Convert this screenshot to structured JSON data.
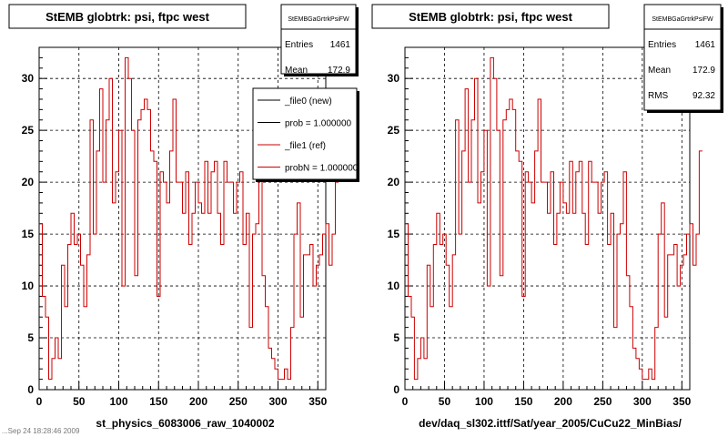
{
  "footer_text": "...Sep 24 18:28:46 2009",
  "legend": {
    "entries": [
      {
        "label": "_file0 (new)",
        "color": "#000000"
      },
      {
        "label": "prob = 1.000000",
        "color": "#000000"
      },
      {
        "label": "_file1 (ref)",
        "color": "#cc0000"
      },
      {
        "label": "probN = 1.000000",
        "color": "#cc0000"
      }
    ]
  },
  "chart_data": [
    {
      "type": "line",
      "title": "StEMB globtrk: psi, ftpc west",
      "xlabel": "st_physics_6083006_raw_1040002",
      "ylabel": "",
      "xlim": [
        0,
        360
      ],
      "ylim": [
        0,
        33
      ],
      "xticks": [
        0,
        50,
        100,
        150,
        200,
        250,
        300,
        350
      ],
      "yticks": [
        0,
        5,
        10,
        15,
        20,
        25,
        30
      ],
      "grid": true,
      "stats": {
        "name": "StEMBGaGrtrkPsiFW",
        "entries_label": "Entries",
        "entries": "1461",
        "mean_label": "Mean",
        "mean": "172.9"
      },
      "series": [
        {
          "name": "_file1 (ref)",
          "color": "#cc0000",
          "bin_width": 4,
          "values": [
            16,
            9,
            7,
            1,
            3,
            5,
            3,
            12,
            8,
            14,
            17,
            14,
            15,
            12,
            8,
            13,
            26,
            15,
            23,
            29,
            20,
            26,
            30,
            18,
            21,
            25,
            10,
            32,
            30,
            25,
            11,
            26,
            27,
            28,
            27,
            23,
            22,
            9,
            21,
            20,
            18,
            23,
            28,
            20,
            20,
            17,
            21,
            14,
            17,
            20,
            18,
            17,
            22,
            17,
            21,
            22,
            17,
            14,
            22,
            20,
            20,
            17,
            20,
            21,
            14,
            17,
            6,
            15,
            16,
            21,
            11,
            8,
            4,
            3,
            2,
            1,
            1,
            2,
            1,
            6,
            15,
            18,
            7,
            13,
            13,
            14,
            10,
            12,
            13,
            15,
            16,
            12,
            15,
            20
          ]
        }
      ]
    },
    {
      "type": "line",
      "title": "StEMB globtrk: psi, ftpc west",
      "xlabel": "dev/daq_sl302.ittf/Sat/year_2005/CuCu22_MinBias/",
      "ylabel": "",
      "xlim": [
        0,
        360
      ],
      "ylim": [
        0,
        33
      ],
      "xticks": [
        0,
        50,
        100,
        150,
        200,
        250,
        300,
        350
      ],
      "yticks": [
        0,
        5,
        10,
        15,
        20,
        25,
        30
      ],
      "grid": true,
      "stats": {
        "name": "StEMBGaGrtrkPsiFW",
        "entries_label": "Entries",
        "entries": "1461",
        "mean_label": "Mean",
        "mean": "172.9",
        "rms_label": "RMS",
        "rms": "92.32"
      },
      "series": [
        {
          "name": "",
          "color": "#cc0000",
          "bin_width": 4,
          "values": [
            16,
            9,
            7,
            1,
            3,
            5,
            3,
            12,
            8,
            14,
            17,
            14,
            15,
            12,
            8,
            13,
            26,
            15,
            23,
            29,
            20,
            26,
            30,
            18,
            21,
            25,
            10,
            32,
            30,
            25,
            11,
            26,
            27,
            28,
            27,
            23,
            22,
            9,
            21,
            20,
            18,
            23,
            28,
            20,
            20,
            17,
            21,
            14,
            17,
            20,
            18,
            17,
            22,
            17,
            21,
            22,
            17,
            14,
            22,
            20,
            20,
            17,
            20,
            21,
            14,
            17,
            6,
            15,
            16,
            21,
            11,
            8,
            4,
            3,
            2,
            1,
            1,
            2,
            1,
            6,
            15,
            18,
            7,
            13,
            13,
            14,
            10,
            12,
            13,
            15,
            16,
            12,
            15,
            23
          ]
        }
      ]
    }
  ]
}
